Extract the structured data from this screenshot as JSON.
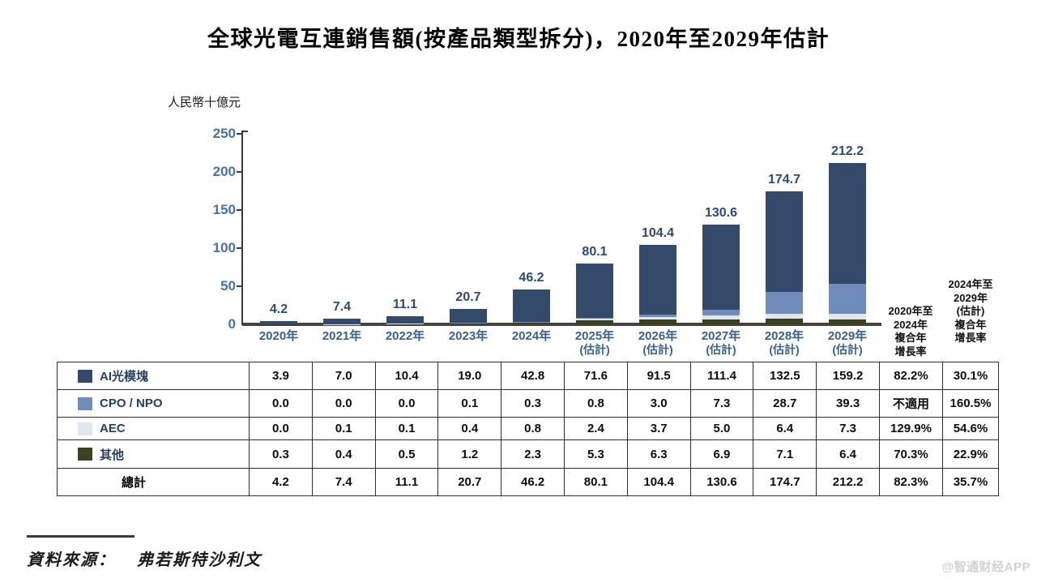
{
  "title": "全球光電互連銷售額(按產品類型拆分)，2020年至2029年估計",
  "source": {
    "label": "資料來源：",
    "value": "弗若斯特沙利文"
  },
  "watermark": "@智通财经APP",
  "colors": {
    "ai_module": "#344A6B",
    "cpo_npo": "#6F8CBA",
    "aec": "#E2E7EE",
    "other": "#3C411F",
    "axis": "#3B3B37",
    "tick_label": "#4573A9",
    "bar_label": "#2C4A76",
    "x_label": "#39618F"
  },
  "chart_data": {
    "type": "bar",
    "subtype": "stacked",
    "title": "全球光電互連銷售額(按產品類型拆分)，2020年至2029年估計",
    "ylabel": "人民幣十億元",
    "ylim": [
      0,
      250
    ],
    "yticks": [
      0,
      50,
      100,
      150,
      200,
      250
    ],
    "grid": false,
    "legend_position": "table-left-column",
    "categories": [
      "2020年",
      "2021年",
      "2022年",
      "2023年",
      "2024年",
      "2025年",
      "2026年",
      "2027年",
      "2028年",
      "2029年"
    ],
    "estimate_suffix": "(估計)",
    "estimate_from_index": 5,
    "stack_order_bottom_to_top": [
      "其他",
      "AEC",
      "CPO / NPO",
      "AI光模塊"
    ],
    "series": [
      {
        "name": "AI光模塊",
        "color": "#344A6B",
        "values": [
          3.9,
          7.0,
          10.4,
          19.0,
          42.8,
          71.6,
          91.5,
          111.4,
          132.5,
          159.2
        ]
      },
      {
        "name": "CPO / NPO",
        "color": "#6F8CBA",
        "values": [
          0.0,
          0.0,
          0.0,
          0.1,
          0.3,
          0.8,
          3.0,
          7.3,
          28.7,
          39.3
        ]
      },
      {
        "name": "AEC",
        "color": "#E2E7EE",
        "values": [
          0.0,
          0.1,
          0.1,
          0.4,
          0.8,
          2.4,
          3.7,
          5.0,
          6.4,
          7.3
        ]
      },
      {
        "name": "其他",
        "color": "#3C411F",
        "values": [
          0.3,
          0.4,
          0.5,
          1.2,
          2.3,
          5.3,
          6.3,
          6.9,
          7.1,
          6.4
        ]
      }
    ],
    "totals": [
      4.2,
      7.4,
      11.1,
      20.7,
      46.2,
      80.1,
      104.4,
      130.6,
      174.7,
      212.2
    ]
  },
  "cagr_headers": {
    "col1_lines": [
      "2020年至",
      "2024年",
      "複合年",
      "增長率"
    ],
    "col2_lines": [
      "2024年至",
      "2029年",
      "(估計)",
      "複合年",
      "增長率"
    ]
  },
  "table": {
    "rows": [
      {
        "label": "AI光模塊",
        "swatch": "#344A6B",
        "values": [
          "3.9",
          "7.0",
          "10.4",
          "19.0",
          "42.8",
          "71.6",
          "91.5",
          "111.4",
          "132.5",
          "159.2"
        ],
        "cagr1": "82.2%",
        "cagr2": "30.1%"
      },
      {
        "label": "CPO / NPO",
        "swatch": "#6F8CBA",
        "values": [
          "0.0",
          "0.0",
          "0.0",
          "0.1",
          "0.3",
          "0.8",
          "3.0",
          "7.3",
          "28.7",
          "39.3"
        ],
        "cagr1": "不適用",
        "cagr2": "160.5%"
      },
      {
        "label": "AEC",
        "swatch": "#E2E7EE",
        "values": [
          "0.0",
          "0.1",
          "0.1",
          "0.4",
          "0.8",
          "2.4",
          "3.7",
          "5.0",
          "6.4",
          "7.3"
        ],
        "cagr1": "129.9%",
        "cagr2": "54.6%"
      },
      {
        "label": "其他",
        "swatch": "#3C411F",
        "values": [
          "0.3",
          "0.4",
          "0.5",
          "1.2",
          "2.3",
          "5.3",
          "6.3",
          "6.9",
          "7.1",
          "6.4"
        ],
        "cagr1": "70.3%",
        "cagr2": "22.9%"
      }
    ],
    "total_row": {
      "label": "總計",
      "values": [
        "4.2",
        "7.4",
        "11.1",
        "20.7",
        "46.2",
        "80.1",
        "104.4",
        "130.6",
        "174.7",
        "212.2"
      ],
      "cagr1": "82.3%",
      "cagr2": "35.7%"
    }
  }
}
